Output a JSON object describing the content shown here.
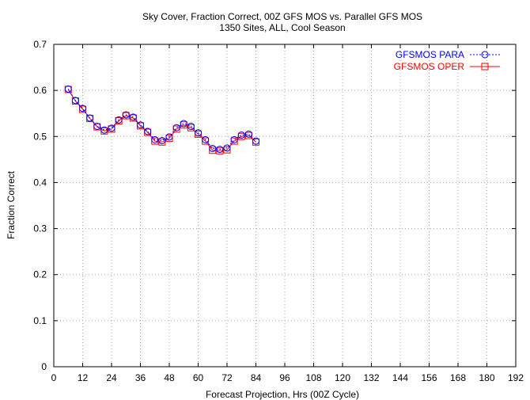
{
  "chart_data": {
    "type": "line",
    "title": "Sky Cover, Fraction Correct, 00Z GFS MOS vs. Parallel GFS MOS",
    "subtitle": "1350 Sites, ALL, Cool Season",
    "xlabel": "Forecast Projection, Hrs (00Z Cycle)",
    "ylabel": "Fraction Correct",
    "xlim": [
      0,
      192
    ],
    "ylim": [
      0,
      0.7
    ],
    "xticks": [
      0,
      12,
      24,
      36,
      48,
      60,
      72,
      84,
      96,
      108,
      120,
      132,
      144,
      156,
      168,
      180,
      192
    ],
    "yticks": [
      0,
      0.1,
      0.2,
      0.3,
      0.4,
      0.5,
      0.6,
      0.7
    ],
    "grid": true,
    "legend_position": "top-right",
    "x": [
      6,
      9,
      12,
      15,
      18,
      21,
      24,
      27,
      30,
      33,
      36,
      39,
      42,
      45,
      48,
      51,
      54,
      57,
      60,
      63,
      66,
      69,
      72,
      75,
      78,
      81,
      84
    ],
    "series": [
      {
        "name": "GFSMOS PARA",
        "color": "#0000ff",
        "marker": "circle",
        "line_style": "dotted",
        "values": [
          0.603,
          0.578,
          0.561,
          0.54,
          0.522,
          0.514,
          0.518,
          0.536,
          0.547,
          0.542,
          0.525,
          0.511,
          0.493,
          0.491,
          0.499,
          0.519,
          0.528,
          0.522,
          0.508,
          0.493,
          0.474,
          0.472,
          0.475,
          0.493,
          0.503,
          0.505,
          0.49
        ]
      },
      {
        "name": "GFSMOS OPER",
        "color": "#ff0000",
        "marker": "square",
        "line_style": "solid",
        "values": [
          0.602,
          0.577,
          0.559,
          0.539,
          0.521,
          0.512,
          0.516,
          0.534,
          0.545,
          0.54,
          0.523,
          0.509,
          0.49,
          0.488,
          0.496,
          0.516,
          0.525,
          0.519,
          0.505,
          0.49,
          0.47,
          0.469,
          0.471,
          0.49,
          0.5,
          0.502,
          0.488
        ]
      }
    ]
  }
}
